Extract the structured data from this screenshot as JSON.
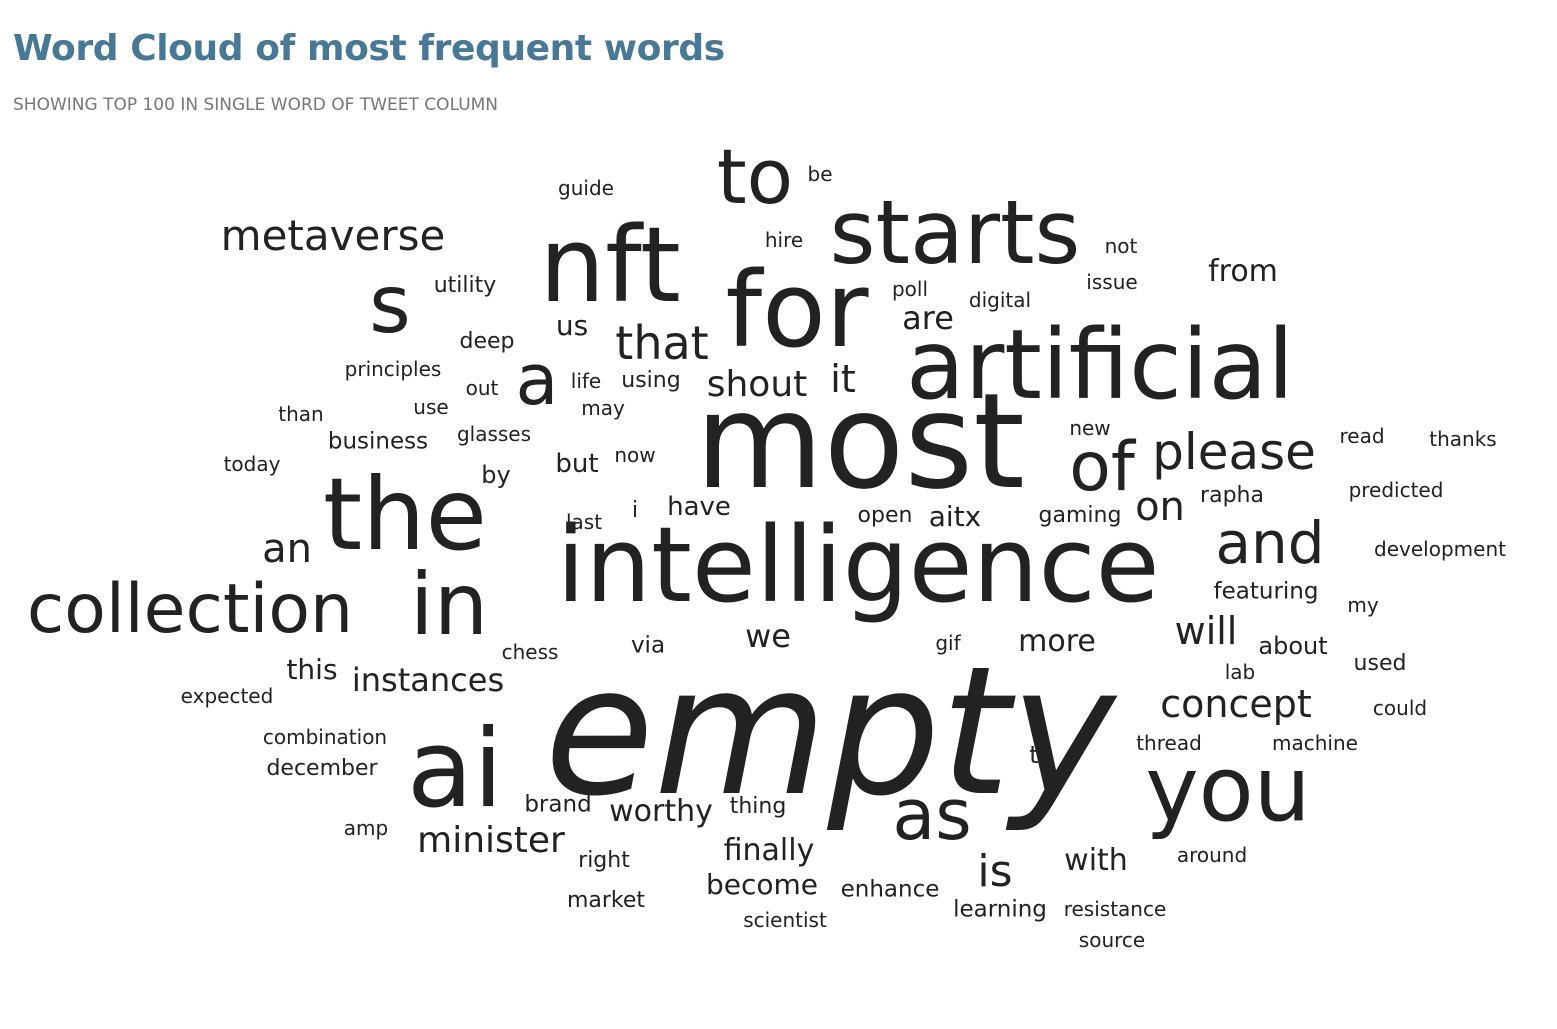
{
  "chart_title": "Word Cloud of most frequent words",
  "chart_subtitle": "SHOWING TOP 100 IN SINGLE WORD OF TWEET COLUMN",
  "colors": {
    "title": "#477896",
    "subtitle": "#777777",
    "word": "#222222"
  },
  "chart_data": {
    "type": "wordcloud",
    "words": [
      {
        "text": "empty",
        "weight": 100
      },
      {
        "text": "most",
        "weight": 72
      },
      {
        "text": "intelligence",
        "weight": 62
      },
      {
        "text": "ai",
        "weight": 58
      },
      {
        "text": "artificial",
        "weight": 56
      },
      {
        "text": "nft",
        "weight": 54
      },
      {
        "text": "for",
        "weight": 54
      },
      {
        "text": "the",
        "weight": 52
      },
      {
        "text": "you",
        "weight": 46
      },
      {
        "text": "starts",
        "weight": 44
      },
      {
        "text": "s",
        "weight": 40
      },
      {
        "text": "collection",
        "weight": 38
      },
      {
        "text": "in",
        "weight": 38
      },
      {
        "text": "to",
        "weight": 38
      },
      {
        "text": "as",
        "weight": 36
      },
      {
        "text": "a",
        "weight": 36
      },
      {
        "text": "of",
        "weight": 34
      },
      {
        "text": "and",
        "weight": 32
      },
      {
        "text": "please",
        "weight": 28
      },
      {
        "text": "that",
        "weight": 27
      },
      {
        "text": "metaverse",
        "weight": 25
      },
      {
        "text": "is",
        "weight": 25
      },
      {
        "text": "concept",
        "weight": 24
      },
      {
        "text": "minister",
        "weight": 22
      },
      {
        "text": "on",
        "weight": 23
      },
      {
        "text": "an",
        "weight": 23
      },
      {
        "text": "shout",
        "weight": 22
      },
      {
        "text": "it",
        "weight": 22
      },
      {
        "text": "will",
        "weight": 22
      },
      {
        "text": "instances",
        "weight": 20
      },
      {
        "text": "more",
        "weight": 19
      },
      {
        "text": "finally",
        "weight": 19
      },
      {
        "text": "become",
        "weight": 18
      },
      {
        "text": "worthy",
        "weight": 18
      },
      {
        "text": "are",
        "weight": 19
      },
      {
        "text": "with",
        "weight": 19
      },
      {
        "text": "we",
        "weight": 19
      },
      {
        "text": "from",
        "weight": 18
      },
      {
        "text": "aitx",
        "weight": 17
      },
      {
        "text": "this",
        "weight": 17
      },
      {
        "text": "have",
        "weight": 16
      },
      {
        "text": "but",
        "weight": 16
      },
      {
        "text": "us",
        "weight": 16
      },
      {
        "text": "featuring",
        "weight": 15
      },
      {
        "text": "about",
        "weight": 15
      },
      {
        "text": "enhance",
        "weight": 15
      },
      {
        "text": "learning",
        "weight": 15
      },
      {
        "text": "brand",
        "weight": 15
      },
      {
        "text": "business",
        "weight": 15
      },
      {
        "text": "thing",
        "weight": 14
      },
      {
        "text": "via",
        "weight": 14
      },
      {
        "text": "market",
        "weight": 14
      },
      {
        "text": "right",
        "weight": 14
      },
      {
        "text": "used",
        "weight": 14
      },
      {
        "text": "utility",
        "weight": 14
      },
      {
        "text": "deep",
        "weight": 14
      },
      {
        "text": "using",
        "weight": 14
      },
      {
        "text": "by",
        "weight": 14
      },
      {
        "text": "rapha",
        "weight": 14
      },
      {
        "text": "gaming",
        "weight": 14
      },
      {
        "text": "open",
        "weight": 14
      },
      {
        "text": "december",
        "weight": 14
      },
      {
        "text": "principles",
        "weight": 13
      },
      {
        "text": "combination",
        "weight": 13
      },
      {
        "text": "expected",
        "weight": 13
      },
      {
        "text": "resistance",
        "weight": 13
      },
      {
        "text": "around",
        "weight": 13
      },
      {
        "text": "thread",
        "weight": 13
      },
      {
        "text": "machine",
        "weight": 13
      },
      {
        "text": "could",
        "weight": 13
      },
      {
        "text": "read",
        "weight": 13
      },
      {
        "text": "thanks",
        "weight": 13
      },
      {
        "text": "predicted",
        "weight": 13
      },
      {
        "text": "development",
        "weight": 13
      },
      {
        "text": "my",
        "weight": 13
      },
      {
        "text": "now",
        "weight": 13
      },
      {
        "text": "glasses",
        "weight": 13
      },
      {
        "text": "use",
        "weight": 13
      },
      {
        "text": "out",
        "weight": 13
      },
      {
        "text": "life",
        "weight": 13
      },
      {
        "text": "may",
        "weight": 13
      },
      {
        "text": "than",
        "weight": 13
      },
      {
        "text": "today",
        "weight": 13
      },
      {
        "text": "guide",
        "weight": 13
      },
      {
        "text": "be",
        "weight": 13
      },
      {
        "text": "hire",
        "weight": 13
      },
      {
        "text": "not",
        "weight": 13
      },
      {
        "text": "issue",
        "weight": 13
      },
      {
        "text": "poll",
        "weight": 13
      },
      {
        "text": "digital",
        "weight": 13
      },
      {
        "text": "new",
        "weight": 13
      },
      {
        "text": "last",
        "weight": 13
      },
      {
        "text": "i",
        "weight": 13
      },
      {
        "text": "chess",
        "weight": 13
      },
      {
        "text": "gif",
        "weight": 13
      },
      {
        "text": "lab",
        "weight": 13
      },
      {
        "text": "t",
        "weight": 13
      },
      {
        "text": "amp",
        "weight": 13
      },
      {
        "text": "scientist",
        "weight": 13
      },
      {
        "text": "source",
        "weight": 13
      }
    ]
  }
}
